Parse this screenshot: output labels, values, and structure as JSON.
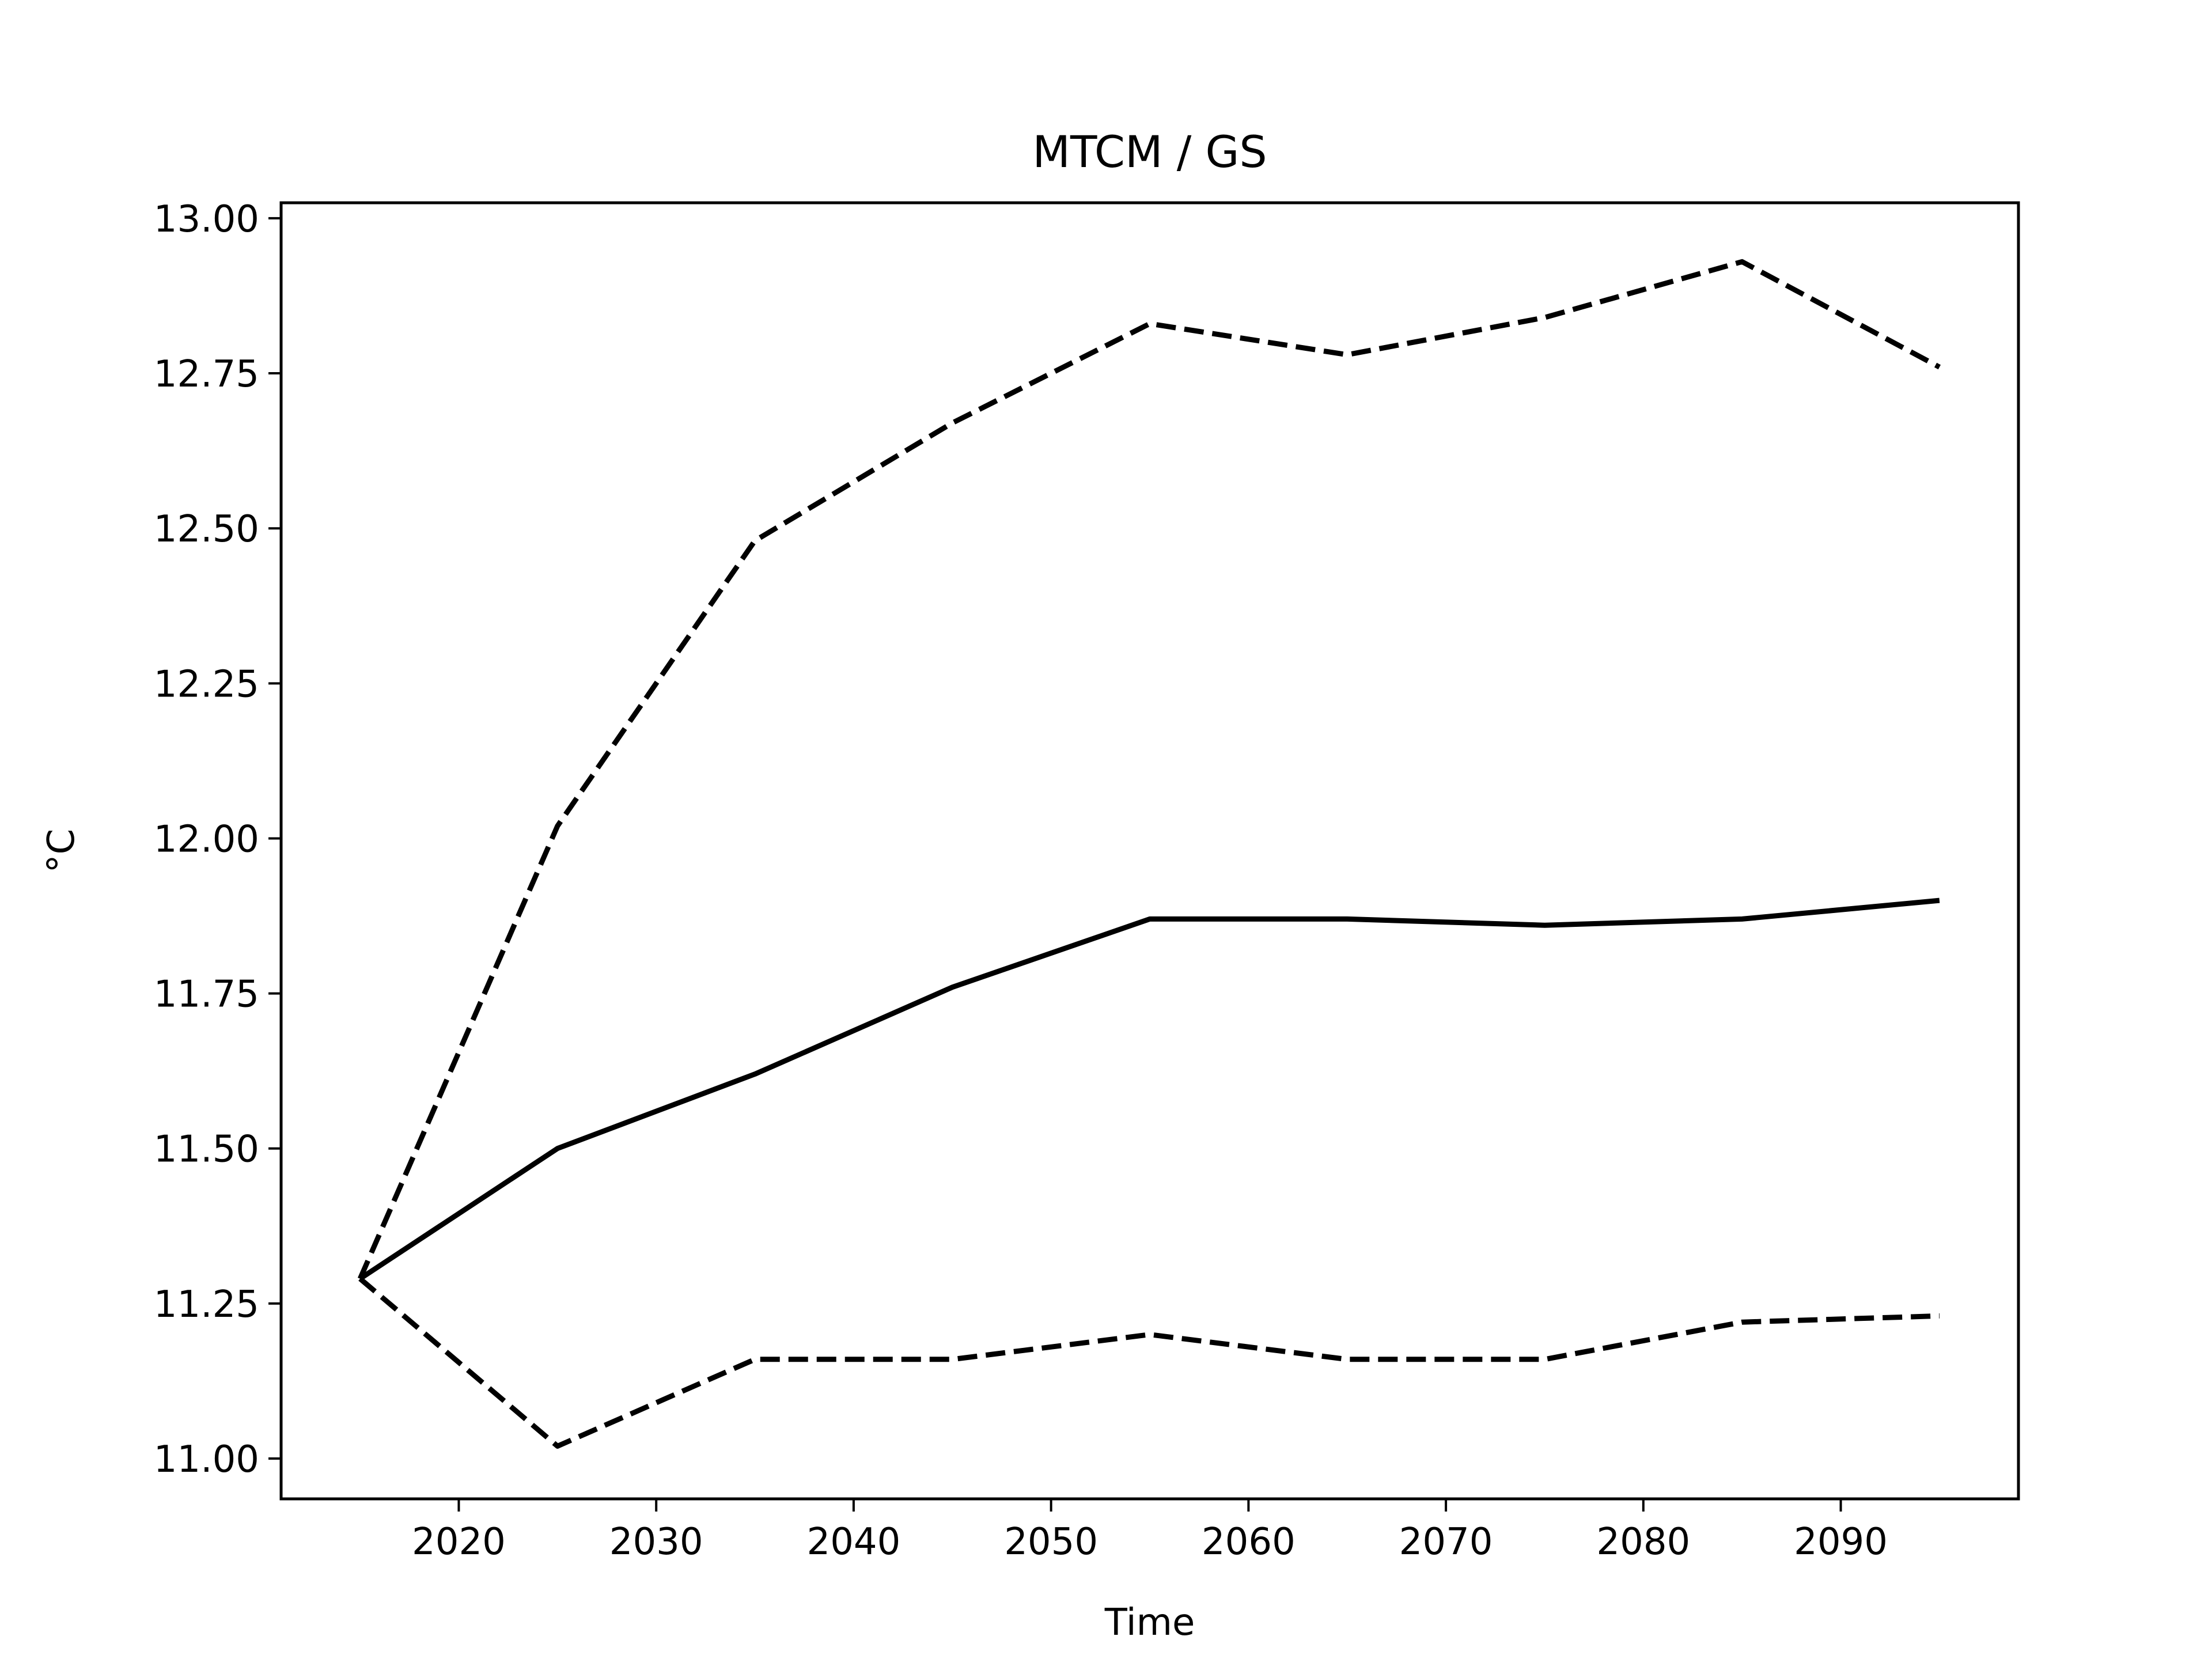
{
  "chart_data": {
    "type": "line",
    "title": "MTCM / GS",
    "xlabel": "Time",
    "ylabel": "°C",
    "xlim": [
      2011,
      2099
    ],
    "ylim": [
      10.935,
      13.025
    ],
    "x_ticks": [
      2020,
      2030,
      2040,
      2050,
      2060,
      2070,
      2080,
      2090
    ],
    "y_ticks": [
      11.0,
      11.25,
      11.5,
      11.75,
      12.0,
      12.25,
      12.5,
      12.75,
      13.0
    ],
    "y_tick_labels": [
      "11.00",
      "11.25",
      "11.50",
      "11.75",
      "12.00",
      "12.25",
      "12.50",
      "12.75",
      "13.00"
    ],
    "grid": false,
    "x": [
      2015,
      2025,
      2035,
      2045,
      2055,
      2065,
      2075,
      2085,
      2095
    ],
    "series": [
      {
        "style": "dashed",
        "color": "#000000",
        "values": [
          11.29,
          12.02,
          12.48,
          12.67,
          12.83,
          12.78,
          12.84,
          12.93,
          12.76
        ]
      },
      {
        "style": "solid",
        "color": "#000000",
        "values": [
          11.29,
          11.5,
          11.62,
          11.76,
          11.87,
          11.87,
          11.86,
          11.87,
          11.9
        ]
      },
      {
        "style": "dashed",
        "color": "#000000",
        "values": [
          11.29,
          11.02,
          11.16,
          11.16,
          11.2,
          11.16,
          11.16,
          11.22,
          11.23
        ]
      }
    ]
  }
}
